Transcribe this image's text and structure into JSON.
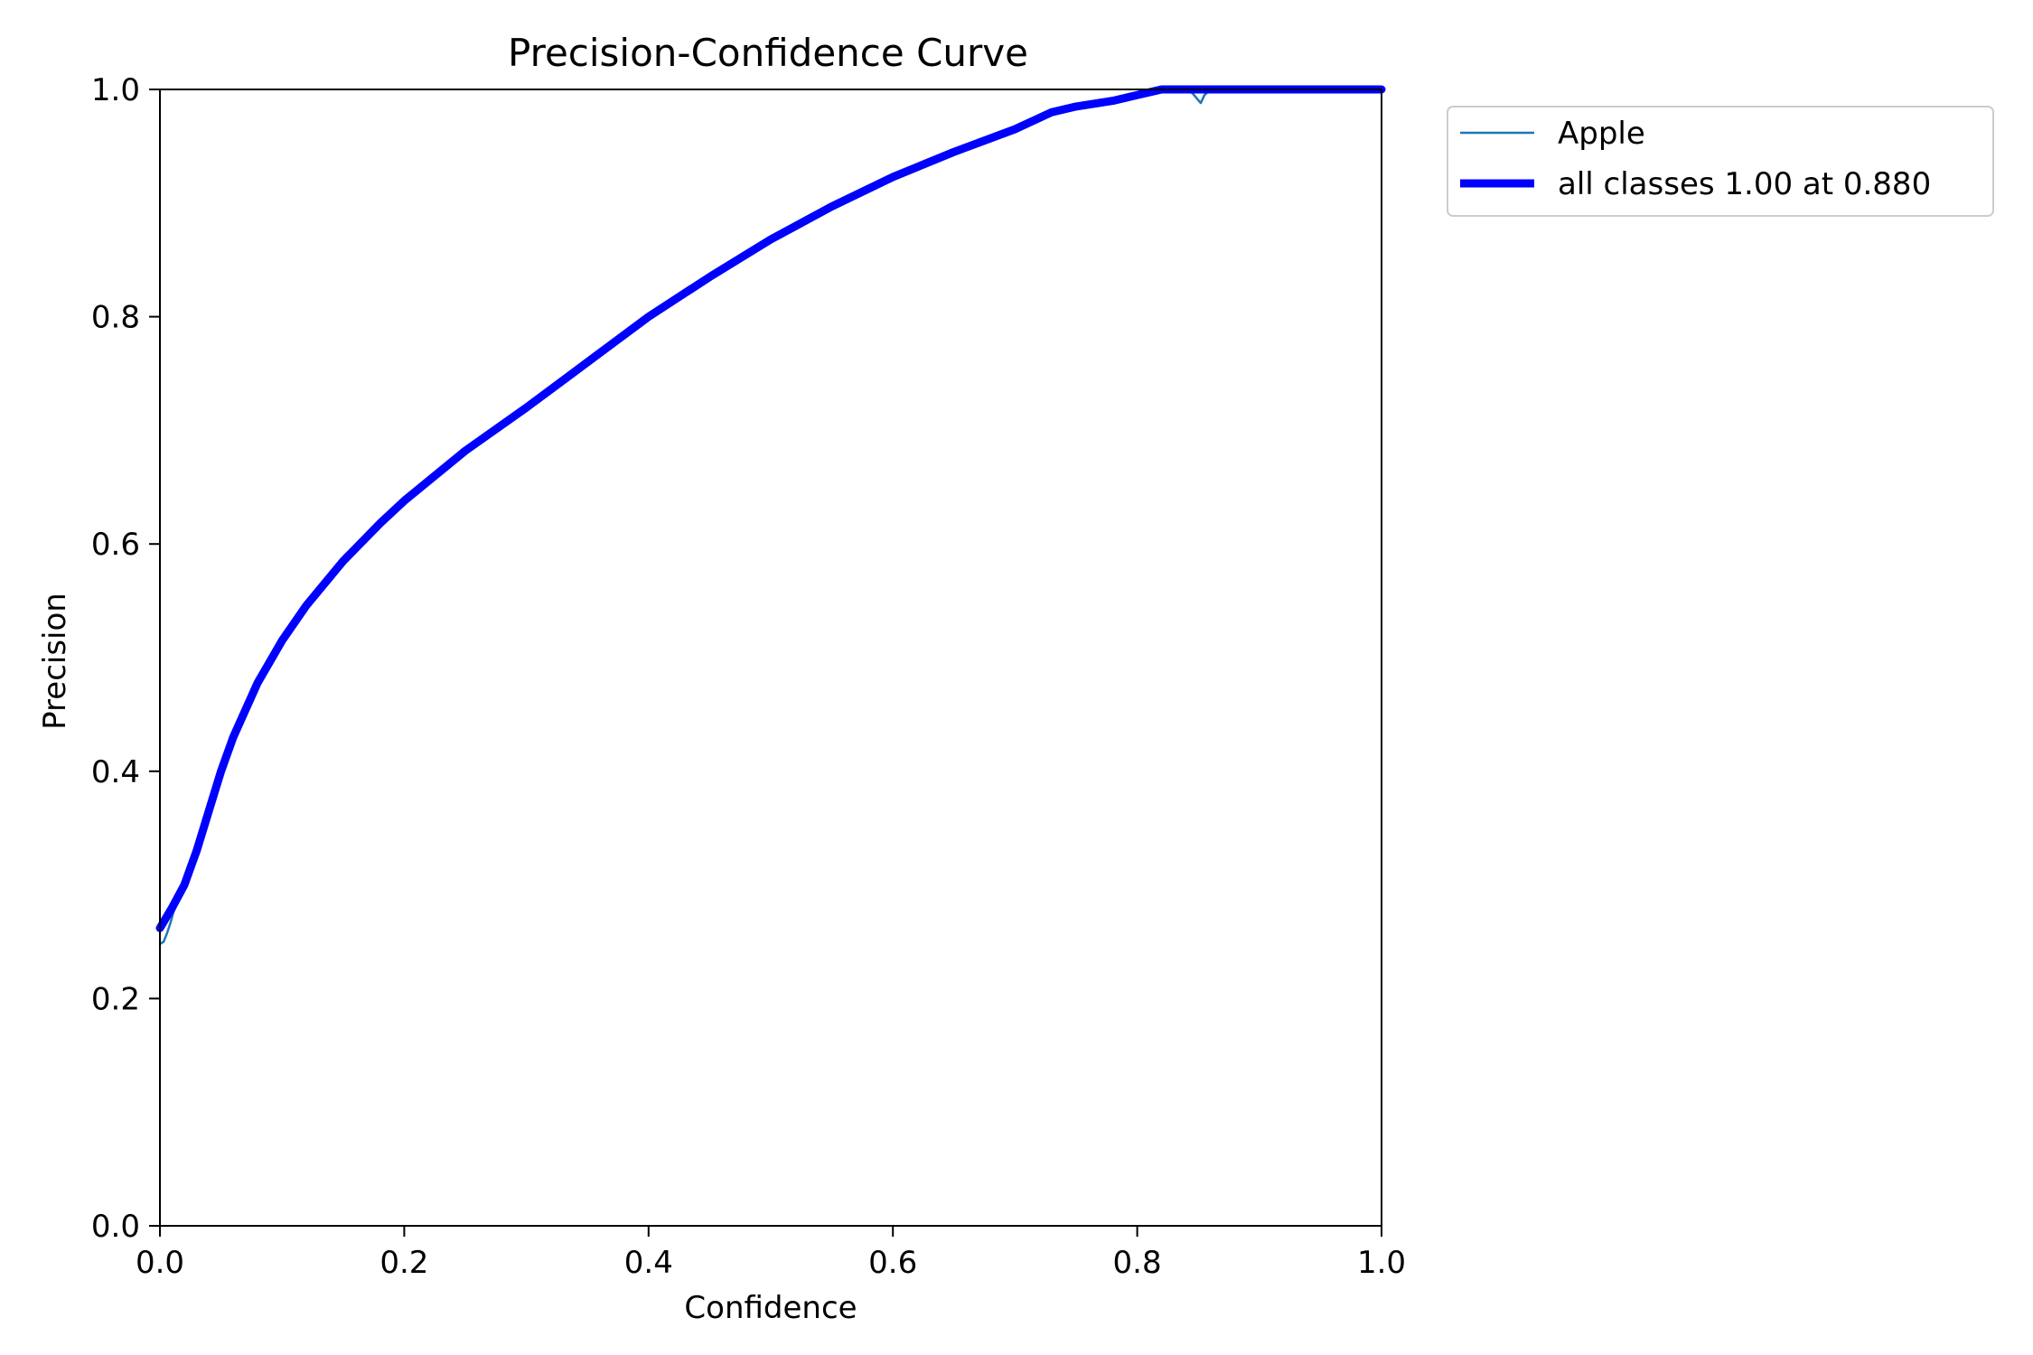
{
  "chart_data": {
    "type": "line",
    "title": "Precision-Confidence Curve",
    "xlabel": "Confidence",
    "ylabel": "Precision",
    "xlim": [
      0,
      1
    ],
    "ylim": [
      0,
      1
    ],
    "xticks": [
      "0.0",
      "0.2",
      "0.4",
      "0.6",
      "0.8",
      "1.0"
    ],
    "yticks": [
      "0.0",
      "0.2",
      "0.4",
      "0.6",
      "0.8",
      "1.0"
    ],
    "grid": false,
    "legend_position": "outside-top-right",
    "series": [
      {
        "name": "Apple",
        "color": "#1f77b4",
        "x": [
          0,
          0.003,
          0.006,
          0.009,
          0.011,
          0.02,
          0.03,
          0.04,
          0.05,
          0.06,
          0.08,
          0.1,
          0.12,
          0.15,
          0.18,
          0.2,
          0.25,
          0.3,
          0.35,
          0.4,
          0.45,
          0.5,
          0.55,
          0.6,
          0.65,
          0.7,
          0.73,
          0.75,
          0.78,
          0.8,
          0.82,
          0.835,
          0.845,
          0.852,
          0.855,
          0.86,
          0.88,
          0.9,
          0.95,
          1.0
        ],
        "y": [
          0.248,
          0.25,
          0.258,
          0.268,
          0.276,
          0.3,
          0.33,
          0.365,
          0.4,
          0.43,
          0.478,
          0.515,
          0.546,
          0.585,
          0.618,
          0.638,
          0.682,
          0.72,
          0.76,
          0.8,
          0.835,
          0.868,
          0.897,
          0.923,
          0.945,
          0.965,
          0.98,
          0.985,
          0.99,
          0.995,
          1.0,
          1.0,
          0.997,
          0.988,
          0.995,
          1.0,
          1.0,
          1.0,
          1.0,
          1.0
        ]
      },
      {
        "name": "all classes 1.00 at 0.880",
        "color": "#0000ff",
        "x": [
          0,
          0.01,
          0.02,
          0.03,
          0.04,
          0.05,
          0.06,
          0.08,
          0.1,
          0.12,
          0.15,
          0.18,
          0.2,
          0.25,
          0.3,
          0.35,
          0.4,
          0.45,
          0.5,
          0.55,
          0.6,
          0.65,
          0.7,
          0.73,
          0.75,
          0.78,
          0.8,
          0.82,
          0.84,
          0.86,
          0.88,
          0.9,
          0.95,
          1.0
        ],
        "y": [
          0.262,
          0.28,
          0.3,
          0.33,
          0.365,
          0.4,
          0.43,
          0.478,
          0.515,
          0.546,
          0.585,
          0.618,
          0.638,
          0.682,
          0.72,
          0.76,
          0.8,
          0.835,
          0.868,
          0.897,
          0.923,
          0.945,
          0.965,
          0.98,
          0.985,
          0.99,
          0.995,
          1.0,
          1.0,
          1.0,
          1.0,
          1.0,
          1.0,
          1.0
        ]
      }
    ]
  }
}
